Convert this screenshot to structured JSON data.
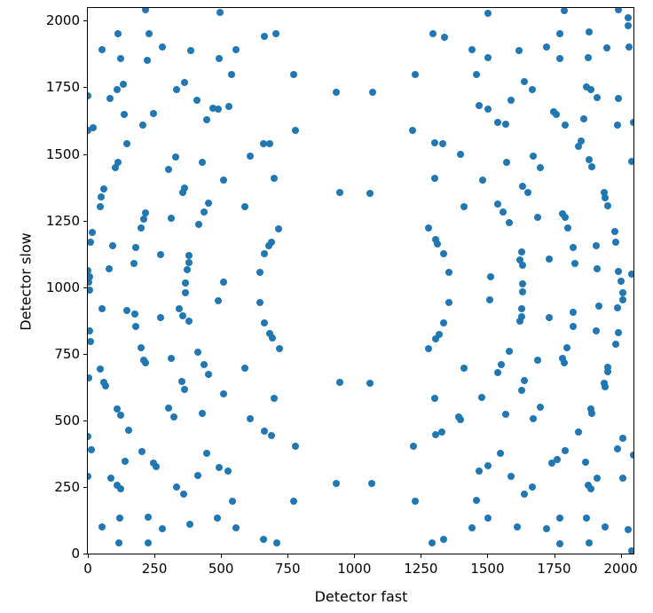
{
  "chart_data": {
    "type": "scatter",
    "title": "",
    "xlabel": "Detector fast",
    "ylabel": "Detector slow",
    "xlim": [
      0,
      2048
    ],
    "ylim": [
      0,
      2048
    ],
    "xticks": [
      0,
      250,
      500,
      750,
      1000,
      1250,
      1500,
      1750,
      2000
    ],
    "yticks": [
      0,
      250,
      500,
      750,
      1000,
      1250,
      1500,
      1750,
      2000
    ],
    "grid": false,
    "legend": null,
    "marker_color": "#1f77b4",
    "marker_diameter_px": 8,
    "points": [
      [
        217,
        2040
      ],
      [
        497,
        2030
      ],
      [
        113,
        1953
      ],
      [
        230,
        1953
      ],
      [
        280,
        1903
      ],
      [
        53,
        1890
      ],
      [
        387,
        1887
      ],
      [
        123,
        1857
      ],
      [
        223,
        1853
      ],
      [
        493,
        1857
      ],
      [
        363,
        1767
      ],
      [
        133,
        1760
      ],
      [
        110,
        1740
      ],
      [
        333,
        1740
      ],
      [
        83,
        1707
      ],
      [
        0,
        1717
      ],
      [
        410,
        1703
      ],
      [
        470,
        1673
      ],
      [
        490,
        1667
      ],
      [
        137,
        1647
      ],
      [
        247,
        1653
      ],
      [
        447,
        1627
      ],
      [
        207,
        1607
      ],
      [
        20,
        1600
      ],
      [
        0,
        1590
      ],
      [
        147,
        1537
      ],
      [
        663,
        1940
      ],
      [
        707,
        1953
      ],
      [
        557,
        1893
      ],
      [
        540,
        1797
      ],
      [
        773,
        1797
      ],
      [
        933,
        1733
      ],
      [
        530,
        1680
      ],
      [
        780,
        1587
      ],
      [
        1503,
        2027
      ],
      [
        1297,
        1953
      ],
      [
        1340,
        1937
      ],
      [
        1443,
        1893
      ],
      [
        1503,
        1860
      ],
      [
        1230,
        1797
      ],
      [
        1460,
        1797
      ],
      [
        1070,
        1733
      ],
      [
        1470,
        1683
      ],
      [
        1503,
        1667
      ],
      [
        1540,
        1620
      ],
      [
        1220,
        1587
      ],
      [
        1787,
        2037
      ],
      [
        1993,
        2040
      ],
      [
        2027,
        2010
      ],
      [
        2027,
        1980
      ],
      [
        1773,
        1953
      ],
      [
        1883,
        1957
      ],
      [
        1720,
        1903
      ],
      [
        1620,
        1887
      ],
      [
        1947,
        1897
      ],
      [
        2033,
        1900
      ],
      [
        1773,
        1857
      ],
      [
        1877,
        1860
      ],
      [
        1637,
        1770
      ],
      [
        1667,
        1740
      ],
      [
        1873,
        1753
      ],
      [
        1887,
        1740
      ],
      [
        1587,
        1703
      ],
      [
        1910,
        1713
      ],
      [
        1993,
        1707
      ],
      [
        1747,
        1660
      ],
      [
        1757,
        1647
      ],
      [
        1860,
        1633
      ],
      [
        1570,
        1613
      ],
      [
        1793,
        1607
      ],
      [
        1987,
        1607
      ],
      [
        2047,
        1620
      ],
      [
        1850,
        1550
      ],
      [
        330,
        1487
      ],
      [
        113,
        1467
      ],
      [
        103,
        1447
      ],
      [
        303,
        1443
      ],
      [
        430,
        1467
      ],
      [
        510,
        1403
      ],
      [
        363,
        1373
      ],
      [
        357,
        1357
      ],
      [
        60,
        1367
      ],
      [
        50,
        1340
      ],
      [
        47,
        1303
      ],
      [
        453,
        1317
      ],
      [
        437,
        1283
      ],
      [
        217,
        1280
      ],
      [
        210,
        1257
      ],
      [
        313,
        1260
      ],
      [
        200,
        1223
      ],
      [
        417,
        1237
      ],
      [
        17,
        1207
      ],
      [
        10,
        1170
      ],
      [
        93,
        1157
      ],
      [
        180,
        1150
      ],
      [
        273,
        1123
      ],
      [
        380,
        1120
      ],
      [
        380,
        1093
      ],
      [
        173,
        1090
      ],
      [
        80,
        1070
      ],
      [
        373,
        1067
      ],
      [
        0,
        1063
      ],
      [
        367,
        1017
      ],
      [
        660,
        1537
      ],
      [
        683,
        1537
      ],
      [
        610,
        1493
      ],
      [
        700,
        1410
      ],
      [
        947,
        1357
      ],
      [
        590,
        1303
      ],
      [
        717,
        1220
      ],
      [
        690,
        1170
      ],
      [
        680,
        1157
      ],
      [
        663,
        1127
      ],
      [
        647,
        1057
      ],
      [
        1303,
        1543
      ],
      [
        1333,
        1537
      ],
      [
        1397,
        1497
      ],
      [
        1303,
        1407
      ],
      [
        1483,
        1403
      ],
      [
        1060,
        1353
      ],
      [
        1413,
        1303
      ],
      [
        1540,
        1313
      ],
      [
        1280,
        1223
      ],
      [
        1307,
        1180
      ],
      [
        1313,
        1163
      ],
      [
        1337,
        1127
      ],
      [
        1357,
        1057
      ],
      [
        1513,
        1040
      ],
      [
        1843,
        1530
      ],
      [
        1673,
        1493
      ],
      [
        1573,
        1467
      ],
      [
        1700,
        1450
      ],
      [
        1883,
        1477
      ],
      [
        1890,
        1453
      ],
      [
        2043,
        1473
      ],
      [
        1633,
        1377
      ],
      [
        1653,
        1357
      ],
      [
        1937,
        1357
      ],
      [
        1940,
        1337
      ],
      [
        1560,
        1283
      ],
      [
        1953,
        1307
      ],
      [
        1687,
        1263
      ],
      [
        1783,
        1277
      ],
      [
        1793,
        1263
      ],
      [
        1583,
        1243
      ],
      [
        1800,
        1223
      ],
      [
        1977,
        1210
      ],
      [
        1983,
        1170
      ],
      [
        1907,
        1157
      ],
      [
        1820,
        1150
      ],
      [
        1627,
        1133
      ],
      [
        1623,
        1103
      ],
      [
        1633,
        1083
      ],
      [
        1733,
        1107
      ],
      [
        1827,
        1090
      ],
      [
        1913,
        1070
      ],
      [
        1990,
        1060
      ],
      [
        2040,
        1050
      ],
      [
        7,
        1040
      ],
      [
        3,
        1020
      ],
      [
        7,
        990
      ],
      [
        367,
        980
      ],
      [
        53,
        920
      ],
      [
        147,
        913
      ],
      [
        177,
        900
      ],
      [
        343,
        920
      ],
      [
        357,
        893
      ],
      [
        380,
        873
      ],
      [
        490,
        950
      ],
      [
        273,
        887
      ],
      [
        180,
        853
      ],
      [
        7,
        837
      ],
      [
        10,
        797
      ],
      [
        200,
        773
      ],
      [
        210,
        727
      ],
      [
        217,
        717
      ],
      [
        313,
        733
      ],
      [
        413,
        757
      ],
      [
        437,
        710
      ],
      [
        453,
        673
      ],
      [
        47,
        693
      ],
      [
        60,
        643
      ],
      [
        67,
        630
      ],
      [
        353,
        647
      ],
      [
        363,
        617
      ],
      [
        3,
        660
      ],
      [
        110,
        543
      ],
      [
        123,
        520
      ],
      [
        303,
        547
      ],
      [
        323,
        513
      ],
      [
        430,
        527
      ],
      [
        510,
        1020
      ],
      [
        647,
        943
      ],
      [
        663,
        867
      ],
      [
        683,
        827
      ],
      [
        693,
        810
      ],
      [
        720,
        770
      ],
      [
        590,
        697
      ],
      [
        947,
        643
      ],
      [
        510,
        600
      ],
      [
        700,
        583
      ],
      [
        610,
        507
      ],
      [
        1357,
        943
      ],
      [
        1510,
        953
      ],
      [
        1337,
        867
      ],
      [
        1320,
        823
      ],
      [
        1307,
        807
      ],
      [
        1280,
        770
      ],
      [
        1413,
        697
      ],
      [
        1060,
        640
      ],
      [
        1303,
        583
      ],
      [
        1480,
        587
      ],
      [
        1393,
        513
      ],
      [
        1633,
        1013
      ],
      [
        1633,
        983
      ],
      [
        2000,
        1023
      ],
      [
        2007,
        980
      ],
      [
        2007,
        953
      ],
      [
        1627,
        920
      ],
      [
        1630,
        890
      ],
      [
        1623,
        873
      ],
      [
        1917,
        930
      ],
      [
        1987,
        923
      ],
      [
        1730,
        887
      ],
      [
        1823,
        907
      ],
      [
        1820,
        853
      ],
      [
        1907,
        837
      ],
      [
        1990,
        830
      ],
      [
        1980,
        787
      ],
      [
        1797,
        773
      ],
      [
        1583,
        760
      ],
      [
        1553,
        710
      ],
      [
        1540,
        680
      ],
      [
        1687,
        727
      ],
      [
        1783,
        733
      ],
      [
        1787,
        717
      ],
      [
        1950,
        700
      ],
      [
        1953,
        683
      ],
      [
        1937,
        640
      ],
      [
        1940,
        627
      ],
      [
        1640,
        650
      ],
      [
        1627,
        613
      ],
      [
        1570,
        523
      ],
      [
        1700,
        550
      ],
      [
        1887,
        543
      ],
      [
        1890,
        527
      ],
      [
        153,
        463
      ],
      [
        0,
        440
      ],
      [
        13,
        390
      ],
      [
        203,
        383
      ],
      [
        140,
        347
      ],
      [
        247,
        340
      ],
      [
        257,
        327
      ],
      [
        447,
        377
      ],
      [
        493,
        323
      ],
      [
        87,
        283
      ],
      [
        110,
        257
      ],
      [
        123,
        243
      ],
      [
        333,
        250
      ],
      [
        360,
        223
      ],
      [
        413,
        293
      ],
      [
        0,
        290
      ],
      [
        120,
        133
      ],
      [
        53,
        100
      ],
      [
        227,
        137
      ],
      [
        280,
        93
      ],
      [
        383,
        110
      ],
      [
        487,
        133
      ],
      [
        117,
        40
      ],
      [
        227,
        40
      ],
      [
        663,
        460
      ],
      [
        690,
        443
      ],
      [
        780,
        403
      ],
      [
        527,
        310
      ],
      [
        933,
        263
      ],
      [
        543,
        197
      ],
      [
        773,
        197
      ],
      [
        557,
        97
      ],
      [
        660,
        53
      ],
      [
        710,
        40
      ],
      [
        1397,
        503
      ],
      [
        1307,
        447
      ],
      [
        1330,
        457
      ],
      [
        1223,
        403
      ],
      [
        1547,
        377
      ],
      [
        1503,
        330
      ],
      [
        1470,
        310
      ],
      [
        1067,
        263
      ],
      [
        1230,
        197
      ],
      [
        1460,
        200
      ],
      [
        1503,
        133
      ],
      [
        1443,
        97
      ],
      [
        1293,
        40
      ],
      [
        1337,
        53
      ],
      [
        1673,
        507
      ],
      [
        1843,
        457
      ],
      [
        2007,
        433
      ],
      [
        1987,
        393
      ],
      [
        1793,
        387
      ],
      [
        1743,
        340
      ],
      [
        1763,
        353
      ],
      [
        1867,
        343
      ],
      [
        2048,
        370
      ],
      [
        1587,
        290
      ],
      [
        1667,
        250
      ],
      [
        1637,
        223
      ],
      [
        1877,
        257
      ],
      [
        1887,
        243
      ],
      [
        1913,
        283
      ],
      [
        2007,
        283
      ],
      [
        1773,
        133
      ],
      [
        1873,
        133
      ],
      [
        1613,
        100
      ],
      [
        1720,
        93
      ],
      [
        1773,
        37
      ],
      [
        1880,
        40
      ],
      [
        1943,
        100
      ],
      [
        2027,
        90
      ],
      [
        2040,
        10
      ]
    ]
  }
}
